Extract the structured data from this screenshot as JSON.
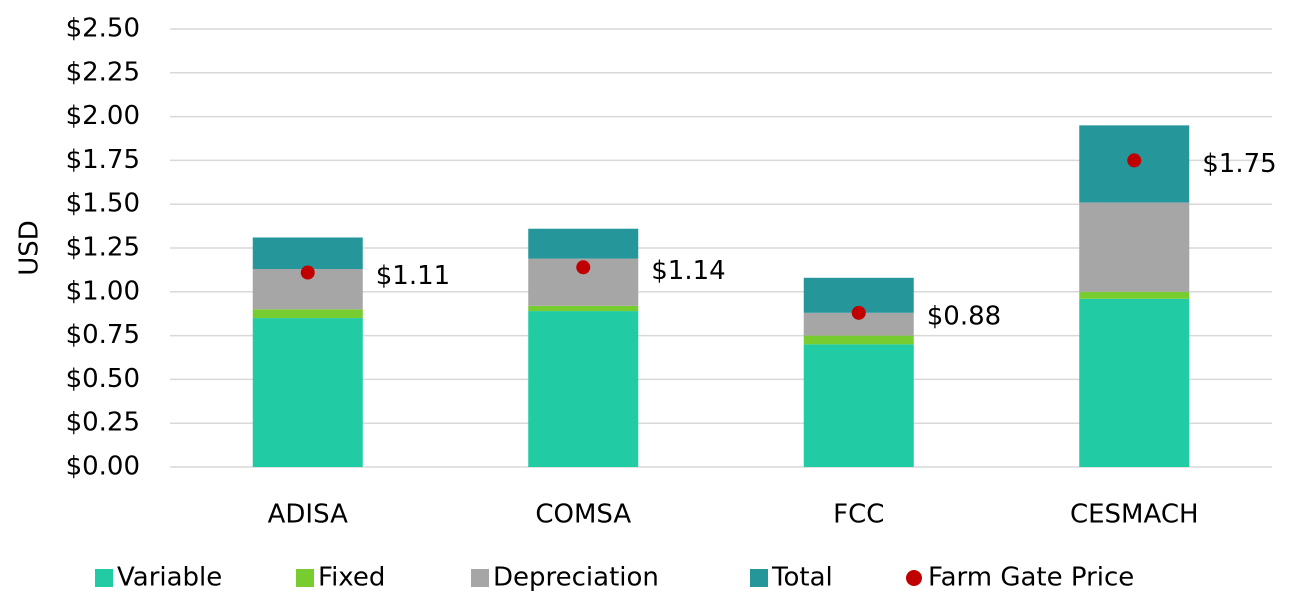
{
  "chart_data": {
    "type": "bar",
    "stacked": true,
    "y_label": "USD",
    "categories": [
      "ADISA",
      "COMSA",
      "FCC",
      "CESMACH"
    ],
    "series": [
      {
        "name": "Variable",
        "color": "#21cba4",
        "values": [
          0.85,
          0.89,
          0.7,
          0.96
        ]
      },
      {
        "name": "Fixed",
        "color": "#77cc2f",
        "values": [
          0.05,
          0.03,
          0.05,
          0.04
        ]
      },
      {
        "name": "Depreciation",
        "color": "#a6a6a6",
        "values": [
          0.23,
          0.27,
          0.13,
          0.51
        ]
      },
      {
        "name": "Total",
        "color": "#25979b",
        "values": [
          0.18,
          0.17,
          0.2,
          0.44
        ]
      },
      {
        "name": "Farm Gate Price",
        "type": "scatter",
        "color": "#c00000",
        "values": [
          1.11,
          1.14,
          0.88,
          1.75
        ],
        "value_labels": [
          "$1.11",
          "$1.14",
          "$0.88",
          "$1.75"
        ]
      }
    ],
    "ylim": [
      0,
      2.5
    ],
    "yticks": [
      {
        "value": 0,
        "label": "$0.00"
      },
      {
        "value": 0.25,
        "label": "$0.25"
      },
      {
        "value": 0.5,
        "label": "$0.50"
      },
      {
        "value": 0.75,
        "label": "$0.75"
      },
      {
        "value": 1,
        "label": "$1.00"
      },
      {
        "value": 1.25,
        "label": "$1.25"
      },
      {
        "value": 1.5,
        "label": "$1.50"
      },
      {
        "value": 1.75,
        "label": "$1.75"
      },
      {
        "value": 2,
        "label": "$2.00"
      },
      {
        "value": 2.25,
        "label": "$2.25"
      },
      {
        "value": 2.5,
        "label": "$2.50"
      }
    ],
    "grid": true,
    "legend": "bottom"
  }
}
